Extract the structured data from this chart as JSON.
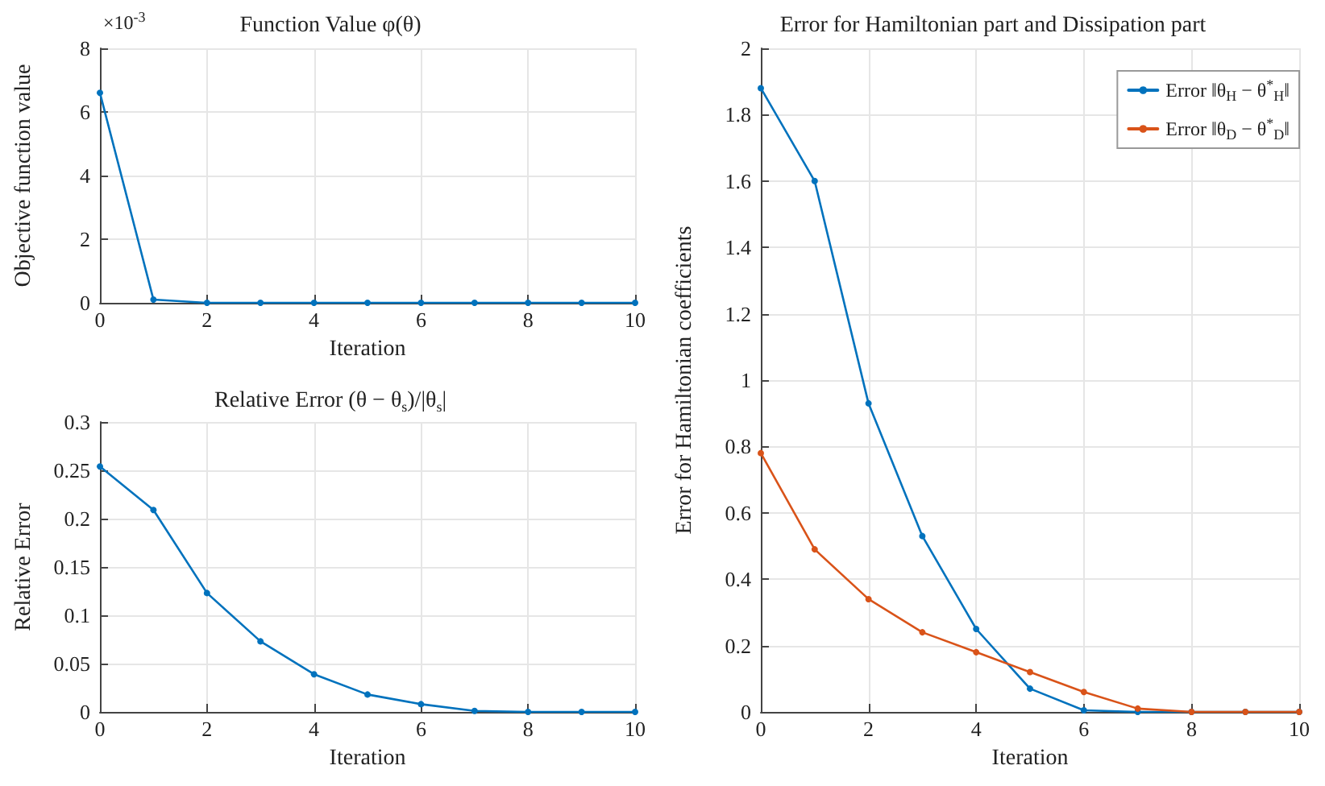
{
  "chart_data": [
    {
      "type": "line",
      "title": "Function Value φ(θ)",
      "xlabel": "Iteration",
      "ylabel": "Objective function value",
      "annotations": [
        "×10$^{-3}$"
      ],
      "x": [
        0,
        1,
        2,
        3,
        4,
        5,
        6,
        7,
        8,
        9,
        10
      ],
      "series": [
        {
          "color": "#0072bd",
          "values": [
            6.6,
            0.1,
            0,
            0,
            0,
            0,
            0,
            0,
            0,
            0,
            0
          ]
        }
      ],
      "xlim": [
        0,
        10
      ],
      "xticks": [
        0,
        2,
        4,
        6,
        8,
        10
      ],
      "ylim": [
        0,
        8
      ],
      "yticks": [
        0,
        2,
        4,
        6,
        8
      ],
      "grid": true,
      "marker": "circle",
      "line_style": "solid",
      "legend": false
    },
    {
      "type": "line",
      "title": "Relative Error (θ − θ$_{s}$)/|θ$_{s}$|",
      "xlabel": "Iteration",
      "ylabel": "Relative Error",
      "x": [
        0,
        1,
        2,
        3,
        4,
        5,
        6,
        7,
        8,
        9,
        10
      ],
      "series": [
        {
          "color": "#0072bd",
          "values": [
            0.254,
            0.209,
            0.123,
            0.073,
            0.039,
            0.018,
            0.008,
            0.001,
            0,
            0,
            0
          ]
        }
      ],
      "xlim": [
        0,
        10
      ],
      "xticks": [
        0,
        2,
        4,
        6,
        8,
        10
      ],
      "ylim": [
        0,
        0.3
      ],
      "yticks": [
        0,
        0.05,
        0.1,
        0.15,
        0.2,
        0.25,
        0.3
      ],
      "grid": true,
      "marker": "circle",
      "line_style": "solid",
      "legend": false
    },
    {
      "type": "line",
      "title": "Error for Hamiltonian part and Dissipation part",
      "xlabel": "Iteration",
      "ylabel": "Error for Hamiltonian coefficients",
      "x": [
        0,
        1,
        2,
        3,
        4,
        5,
        6,
        7,
        8,
        9,
        10
      ],
      "series": [
        {
          "name": "Error ‖θ$_{H}$ − θ$^{*}$$_{H}$‖",
          "color": "#0072bd",
          "values": [
            1.88,
            1.6,
            0.93,
            0.53,
            0.25,
            0.07,
            0.005,
            0,
            0,
            0,
            0
          ]
        },
        {
          "name": "Error ‖θ$_{D}$ − θ$^{*}$$_{D}$‖",
          "color": "#d95319",
          "values": [
            0.78,
            0.49,
            0.34,
            0.24,
            0.18,
            0.12,
            0.06,
            0.01,
            0,
            0,
            0
          ]
        }
      ],
      "xlim": [
        0,
        10
      ],
      "xticks": [
        0,
        2,
        4,
        6,
        8,
        10
      ],
      "ylim": [
        0,
        2
      ],
      "yticks": [
        0,
        0.2,
        0.4,
        0.6,
        0.8,
        1,
        1.2,
        1.4,
        1.6,
        1.8,
        2
      ],
      "grid": true,
      "marker": "circle",
      "line_style": "solid",
      "legend": "top right"
    }
  ]
}
